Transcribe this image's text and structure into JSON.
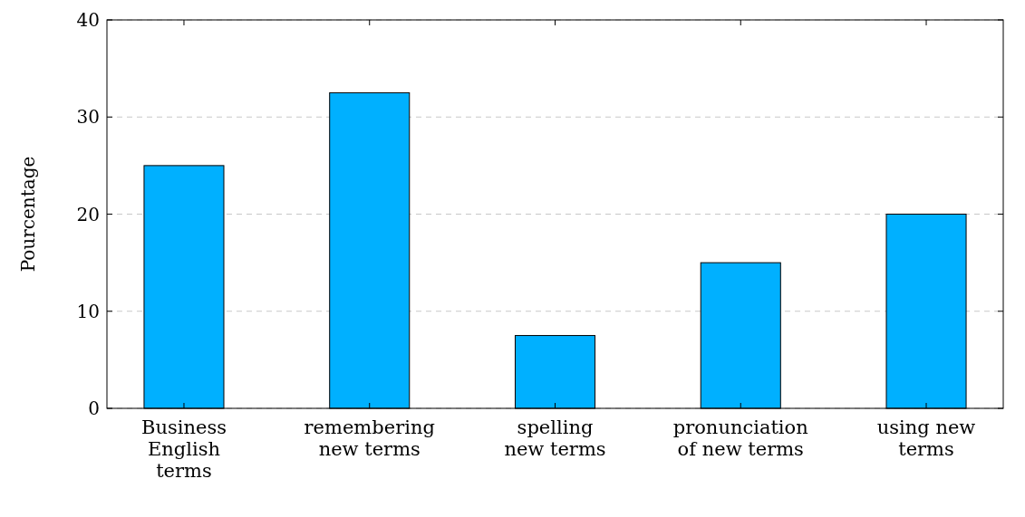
{
  "chart_data": {
    "type": "bar",
    "ylabel": "Pourcentage",
    "categories": [
      "Business\nEnglish\nterms",
      "remembering\nnew terms",
      "spelling\nnew terms",
      "pronunciation\nof new terms",
      "using new\nterms"
    ],
    "values": [
      25,
      32.5,
      7.5,
      15,
      20
    ],
    "color": "#00b0ff",
    "ylim": [
      0,
      40
    ],
    "yticks": [
      0,
      10,
      20,
      30,
      40
    ],
    "grid": "y"
  }
}
